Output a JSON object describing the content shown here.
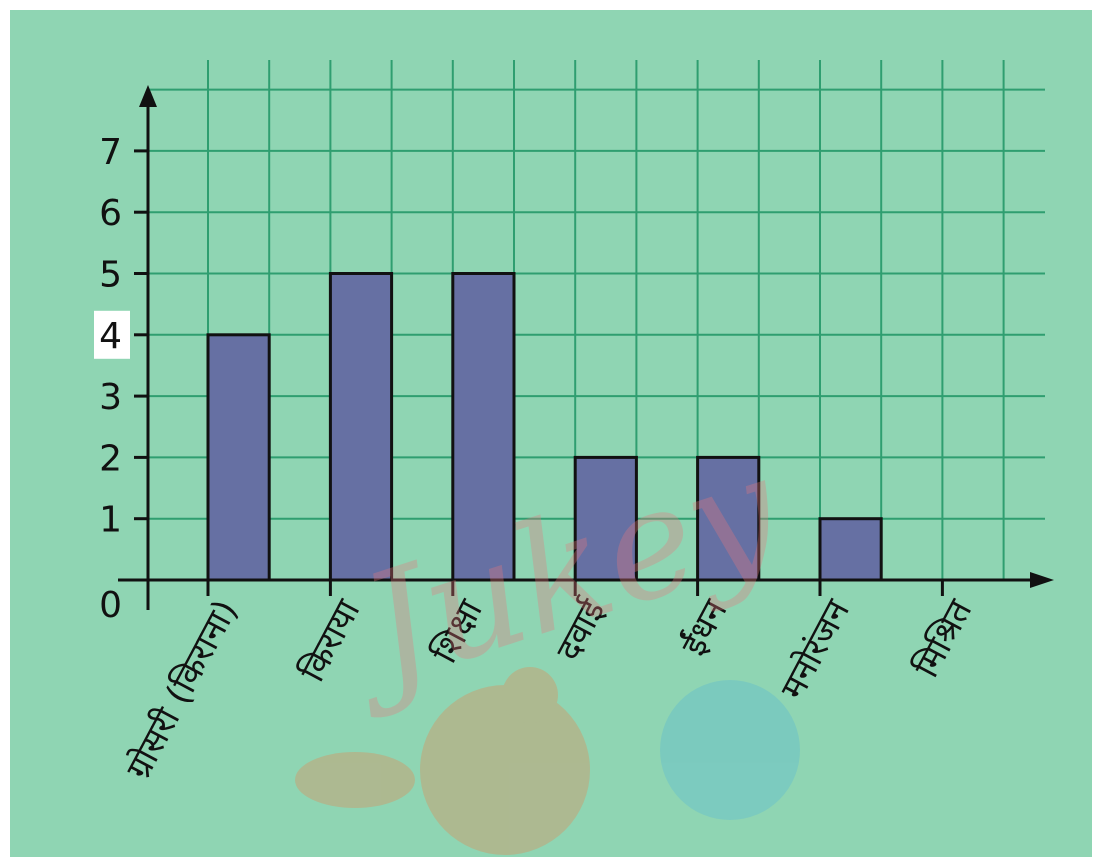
{
  "chart_data": {
    "type": "bar",
    "categories": [
      "ग्रोसरी (किराना)",
      "किराया",
      "शिक्षा",
      "दवाई",
      "ईंधन",
      "मनोरंजन",
      "मिश्रित"
    ],
    "values": [
      4,
      5,
      5,
      2,
      2,
      1,
      0
    ],
    "title": "",
    "xlabel": "",
    "ylabel": "",
    "ylim": [
      0,
      7
    ],
    "yticks": [
      1,
      2,
      3,
      4,
      5,
      6,
      7
    ],
    "origin_label": "0",
    "grid": true,
    "highlighted_tick": 4,
    "colors": {
      "background": "#8fd5b3",
      "grid": "#2f9e70",
      "bar": "#6670a3",
      "axis": "#111111"
    }
  },
  "watermark": {
    "text": "Jukey"
  }
}
